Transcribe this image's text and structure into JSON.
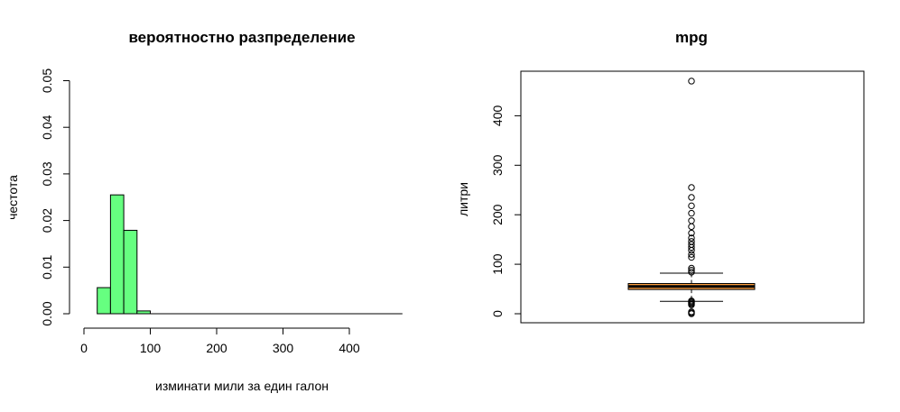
{
  "chart_data": [
    {
      "type": "histogram",
      "title": "вероятностно разпределение",
      "xlabel": "изминати мили за един галон",
      "ylabel": "честота",
      "xlim": [
        0,
        480
      ],
      "ylim": [
        0,
        0.05
      ],
      "xticks": [
        "0",
        "100",
        "200",
        "300",
        "400"
      ],
      "xtick_values": [
        0,
        100,
        200,
        300,
        400
      ],
      "yticks": [
        "0.00",
        "0.01",
        "0.02",
        "0.03",
        "0.04",
        "0.05"
      ],
      "ytick_values": [
        0,
        0.01,
        0.02,
        0.03,
        0.04,
        0.05
      ],
      "bins": [
        {
          "from": 20,
          "to": 40,
          "density": 0.0056
        },
        {
          "from": 40,
          "to": 60,
          "density": 0.0255
        },
        {
          "from": 60,
          "to": 80,
          "density": 0.0179
        },
        {
          "from": 80,
          "to": 100,
          "density": 0.0006
        },
        {
          "from": 100,
          "to": 480,
          "density": 0
        }
      ],
      "bar_color": "#66ff80"
    },
    {
      "type": "boxplot",
      "title": "mpg",
      "xlabel": "",
      "ylabel": "литри",
      "ylim": [
        -10,
        480
      ],
      "yticks": [
        "0",
        "100",
        "200",
        "300",
        "400"
      ],
      "ytick_values": [
        0,
        100,
        200,
        300,
        400
      ],
      "median": 55,
      "q1": 49,
      "q3": 61,
      "whisker_low": 25,
      "whisker_high": 82,
      "outliers": [
        0,
        2,
        4,
        18,
        20,
        22,
        24,
        26,
        84,
        88,
        92,
        114,
        120,
        128,
        134,
        140,
        146,
        153,
        163,
        176,
        188,
        203,
        218,
        235,
        255,
        470
      ],
      "box_color": "#ff9e3d"
    }
  ]
}
